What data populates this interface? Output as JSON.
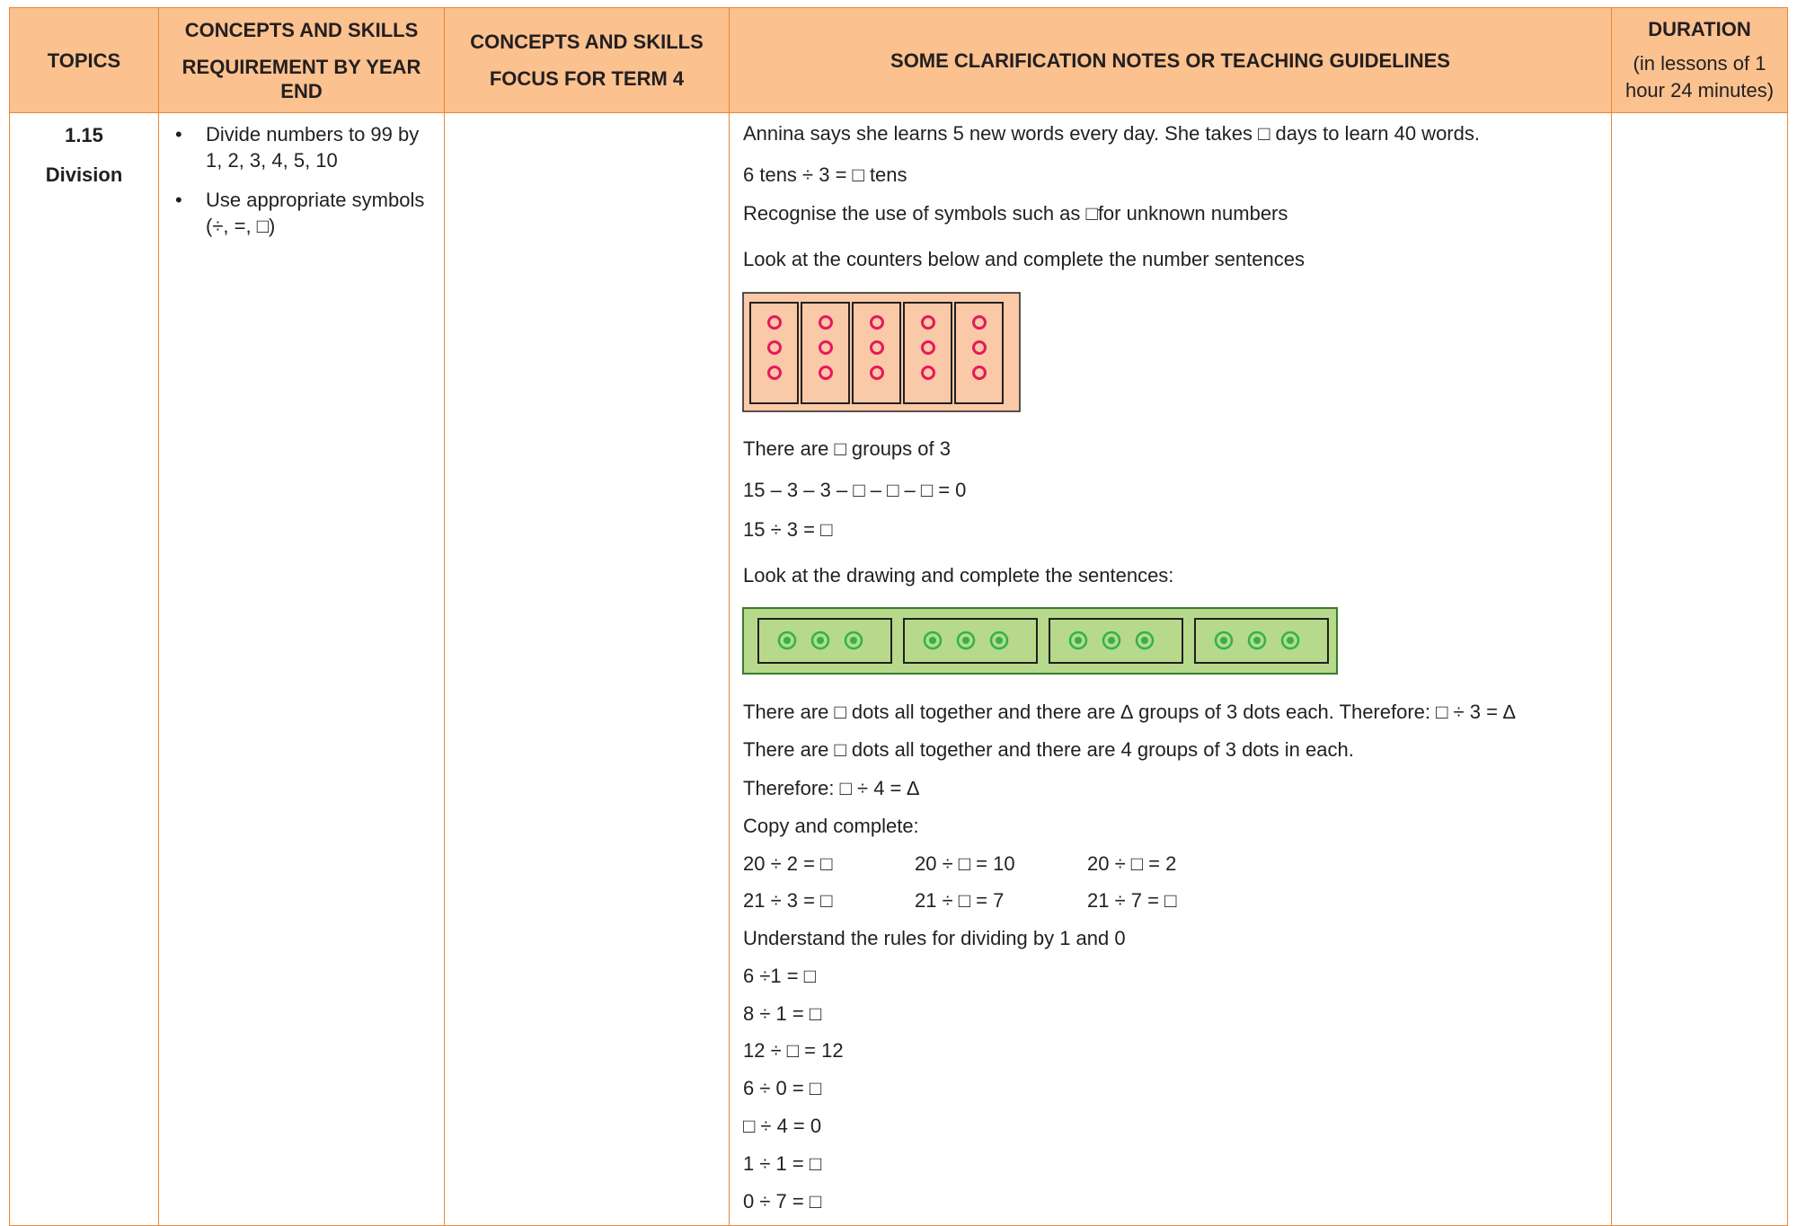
{
  "header": {
    "topics": [
      "TOPICS"
    ],
    "requirements": [
      "CONCEPTS AND SKILLS",
      "REQUIREMENT BY YEAR END"
    ],
    "focus": [
      "CONCEPTS AND SKILLS",
      "FOCUS FOR TERM 4"
    ],
    "notes": [
      "SOME CLARIFICATION NOTES OR TEACHING GUIDELINES"
    ],
    "duration": [
      "DURATION",
      "(in lessons of 1 hour 24 minutes)"
    ]
  },
  "row": {
    "topic_number": "1.15",
    "topic_name": "Division",
    "requirements": [
      "Divide numbers to 99 by 1, 2, 3, 4, 5, 10",
      "Use appropriate symbols (÷, =, □)"
    ],
    "notes": [
      "Annina says she learns 5 new words every day. She takes □ days to learn 40 words.",
      "6 tens ÷ 3 = □ tens",
      "Recognise the use of symbols such as □for unknown numbers",
      "Look at the counters below and complete the number sentences",
      "There are □ groups of 3",
      "15 – 3 – 3 – □ – □ – □ = 0",
      "15 ÷ 3 = □",
      "Look at the drawing and complete the sentences:",
      "There are □ dots all together and there are ∆ groups of 3 dots each. Therefore: □ ÷ 3 = ∆",
      "There are □ dots all together and there are 4 groups of 3 dots in each.",
      "Therefore: □ ÷ 4 = ∆",
      "Copy and complete:",
      [
        "20 ÷ 2 = □",
        "20 ÷ □ = 10",
        "20 ÷ □ = 2"
      ],
      [
        "21 ÷ 3 = □",
        "21 ÷ □ = 7",
        "21 ÷ 7 = □"
      ],
      "Understand the rules for dividing by 1 and 0",
      "6 ÷1 = □",
      "8 ÷ 1 = □",
      "12 ÷ □ = 12",
      "6 ÷ 0 = □",
      "□ ÷ 4 = 0",
      "1 ÷ 1 = □",
      "0 ÷ 7 = □"
    ]
  }
}
